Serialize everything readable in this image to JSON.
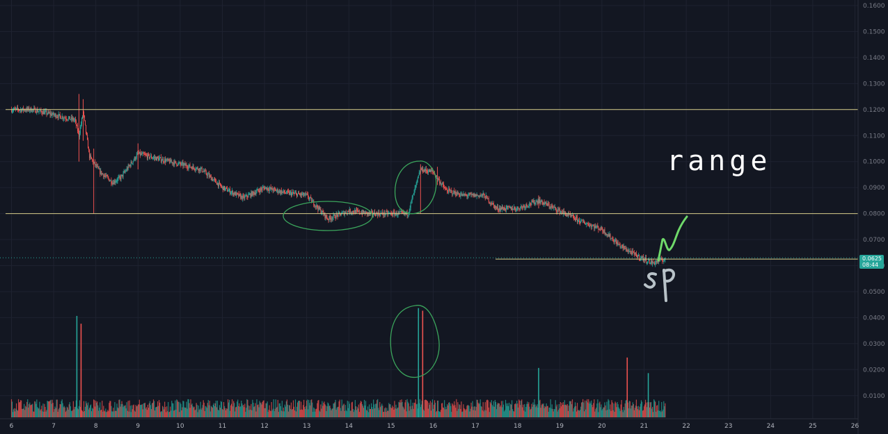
{
  "colors": {
    "background": "#131722",
    "grid": "#1e2230",
    "up": "#26a69a",
    "down": "#ef5350",
    "level_line": "#d8cf8a",
    "price_tag": "#26a69a",
    "annotation_green": "#3ba55c",
    "annotation_bright_green": "#6fd96a",
    "annotation_grey": "#b8c2c8",
    "annotation_white": "#ffffff"
  },
  "price_axis": {
    "ticks": [
      "0.1600",
      "0.1500",
      "0.1400",
      "0.1300",
      "0.1200",
      "0.1100",
      "0.1000",
      "0.0900",
      "0.0800",
      "0.0700",
      "0.0600",
      "0.0500",
      "0.0400",
      "0.0300",
      "0.0200",
      "0.0100"
    ],
    "current_price": "0.0625",
    "countdown": "08:44"
  },
  "annotations": {
    "range_label": "range",
    "sp_label": "sp"
  },
  "chart_data": {
    "type": "candlestick",
    "x_unit": "day of month",
    "x_ticks": [
      "6",
      "7",
      "8",
      "9",
      "10",
      "11",
      "12",
      "13",
      "14",
      "15",
      "16",
      "17",
      "18",
      "19",
      "20",
      "21",
      "22",
      "23",
      "24",
      "25",
      "26"
    ],
    "price_ylim": [
      0.05,
      0.16
    ],
    "volume_ylim": [
      0,
      0.045
    ],
    "horizontal_levels": [
      0.12,
      0.08,
      0.0625
    ],
    "price_path": [
      [
        6.0,
        0.12
      ],
      [
        6.5,
        0.12
      ],
      [
        7.0,
        0.118
      ],
      [
        7.5,
        0.116
      ],
      [
        7.6,
        0.11
      ],
      [
        7.7,
        0.119
      ],
      [
        7.85,
        0.102
      ],
      [
        8.1,
        0.096
      ],
      [
        8.4,
        0.092
      ],
      [
        8.6,
        0.094
      ],
      [
        9.0,
        0.103
      ],
      [
        9.5,
        0.101
      ],
      [
        10.0,
        0.099
      ],
      [
        10.5,
        0.097
      ],
      [
        11.0,
        0.09
      ],
      [
        11.5,
        0.086
      ],
      [
        12.0,
        0.09
      ],
      [
        12.5,
        0.088
      ],
      [
        13.0,
        0.087
      ],
      [
        13.5,
        0.078
      ],
      [
        14.0,
        0.081
      ],
      [
        14.5,
        0.08
      ],
      [
        15.0,
        0.08
      ],
      [
        15.4,
        0.08
      ],
      [
        15.7,
        0.097
      ],
      [
        16.0,
        0.096
      ],
      [
        16.3,
        0.089
      ],
      [
        16.7,
        0.087
      ],
      [
        17.2,
        0.087
      ],
      [
        17.5,
        0.082
      ],
      [
        18.0,
        0.082
      ],
      [
        18.5,
        0.085
      ],
      [
        19.0,
        0.081
      ],
      [
        19.5,
        0.077
      ],
      [
        20.0,
        0.074
      ],
      [
        20.4,
        0.068
      ],
      [
        20.8,
        0.064
      ],
      [
        21.2,
        0.061
      ],
      [
        21.5,
        0.0625
      ]
    ],
    "volume_spikes": [
      [
        7.55,
        0.039
      ],
      [
        7.65,
        0.036
      ],
      [
        15.65,
        0.042
      ],
      [
        15.75,
        0.041
      ],
      [
        18.5,
        0.019
      ],
      [
        20.6,
        0.023
      ],
      [
        21.1,
        0.017
      ]
    ]
  }
}
